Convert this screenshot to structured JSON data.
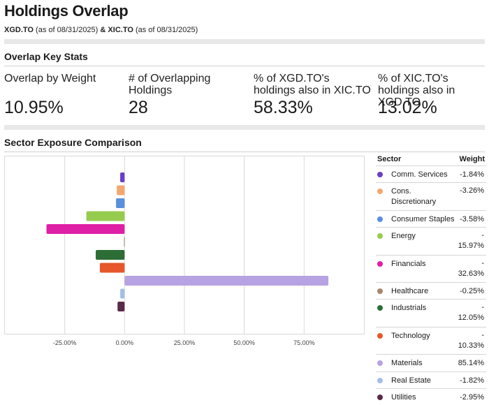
{
  "title": "Holdings Overlap",
  "subtitle": {
    "fund1": "XGD.TO",
    "fund1_asof": "(as of 08/31/2025)",
    "amp": "&",
    "fund2": "XIC.TO",
    "fund2_asof": "(as of 08/31/2025)"
  },
  "key_stats": {
    "heading": "Overlap Key Stats",
    "items": [
      {
        "label": "Overlap by Weight",
        "value": "10.95%"
      },
      {
        "label": "# of Overlapping Holdings",
        "value": "28"
      },
      {
        "label": "% of XGD.TO's holdings also in XIC.TO",
        "value": "58.33%"
      },
      {
        "label": "% of XIC.TO's holdings also in XGD.TO",
        "value": "13.02%"
      }
    ]
  },
  "sector_heading": "Sector Exposure Comparison",
  "table": {
    "col_sector": "Sector",
    "col_weight": "Weight",
    "rows": [
      {
        "sector": "Comm. Services",
        "weight": "-1.84%"
      },
      {
        "sector": "Cons. Discretionary",
        "weight": "-3.26%"
      },
      {
        "sector": "Consumer Staples",
        "weight": "-3.58%"
      },
      {
        "sector": "Energy",
        "weight": "-15.97%"
      },
      {
        "sector": "Financials",
        "weight": "-32.63%"
      },
      {
        "sector": "Healthcare",
        "weight": "-0.25%"
      },
      {
        "sector": "Industrials",
        "weight": "-12.05%"
      },
      {
        "sector": "Technology",
        "weight": "-10.33%"
      },
      {
        "sector": "Materials",
        "weight": "85.14%"
      },
      {
        "sector": "Real Estate",
        "weight": "-1.82%"
      },
      {
        "sector": "Utilities",
        "weight": "-2.95%"
      }
    ]
  },
  "chart_data": {
    "type": "bar",
    "orientation": "horizontal",
    "categories": [
      "Comm. Services",
      "Cons. Discretionary",
      "Consumer Staples",
      "Energy",
      "Financials",
      "Healthcare",
      "Industrials",
      "Technology",
      "Materials",
      "Real Estate",
      "Utilities"
    ],
    "values": [
      -1.84,
      -3.26,
      -3.58,
      -15.97,
      -32.63,
      -0.25,
      -12.05,
      -10.33,
      85.14,
      -1.82,
      -2.95
    ],
    "colors": [
      "#6a3fc8",
      "#f5a66e",
      "#5a8fdd",
      "#96cc4e",
      "#df1fa6",
      "#a8866b",
      "#2c6e35",
      "#e6582a",
      "#b7a2e3",
      "#a3bfe6",
      "#5a2a4a"
    ],
    "xlim": [
      -50,
      100
    ],
    "ticks": [
      -25,
      0,
      25,
      50,
      75
    ],
    "tick_labels": [
      "-25.00%",
      "0.00%",
      "25.00%",
      "50.00%",
      "75.00%"
    ],
    "grid": true,
    "legend": "table-right"
  }
}
